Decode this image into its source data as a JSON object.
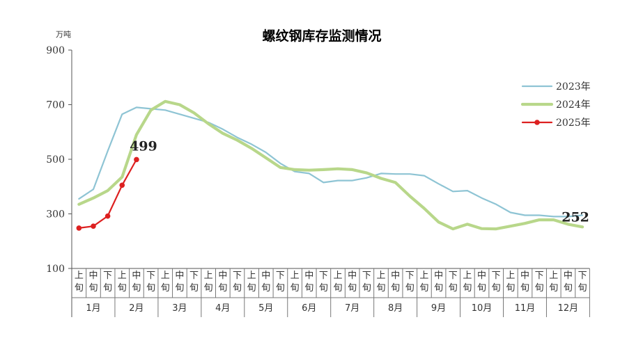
{
  "chart_data": {
    "type": "line",
    "title": "螺纹钢库存监测情况",
    "unit": "万吨",
    "ylim": [
      100,
      900
    ],
    "yticks": [
      100,
      300,
      500,
      700,
      900
    ],
    "grid": false,
    "legend_position": "top-right",
    "periods": [
      "上旬",
      "中旬",
      "下旬"
    ],
    "months": [
      "1月",
      "2月",
      "3月",
      "4月",
      "5月",
      "6月",
      "7月",
      "8月",
      "9月",
      "10月",
      "11月",
      "12月"
    ],
    "series": [
      {
        "name": "2023年",
        "color": "#8ec4d4",
        "values": [
          355,
          390,
          530,
          665,
          690,
          685,
          680,
          665,
          650,
          635,
          610,
          580,
          555,
          525,
          485,
          455,
          448,
          415,
          422,
          422,
          432,
          448,
          446,
          446,
          440,
          410,
          382,
          385,
          358,
          335,
          305,
          295,
          295,
          290,
          290,
          295
        ]
      },
      {
        "name": "2024年",
        "color": "#b8d78a",
        "values": [
          335,
          358,
          385,
          435,
          590,
          680,
          712,
          700,
          670,
          630,
          595,
          570,
          540,
          505,
          470,
          462,
          460,
          462,
          465,
          462,
          450,
          430,
          415,
          365,
          320,
          270,
          245,
          262,
          246,
          245,
          255,
          265,
          278,
          278,
          262,
          252
        ]
      },
      {
        "name": "2025年",
        "color": "#dd2020",
        "values": [
          248,
          255,
          292,
          405,
          499
        ]
      }
    ],
    "data_labels": [
      {
        "series": "2025年",
        "index": 4,
        "text": "499"
      },
      {
        "series": "2024年",
        "index": 35,
        "text": "252"
      }
    ]
  }
}
